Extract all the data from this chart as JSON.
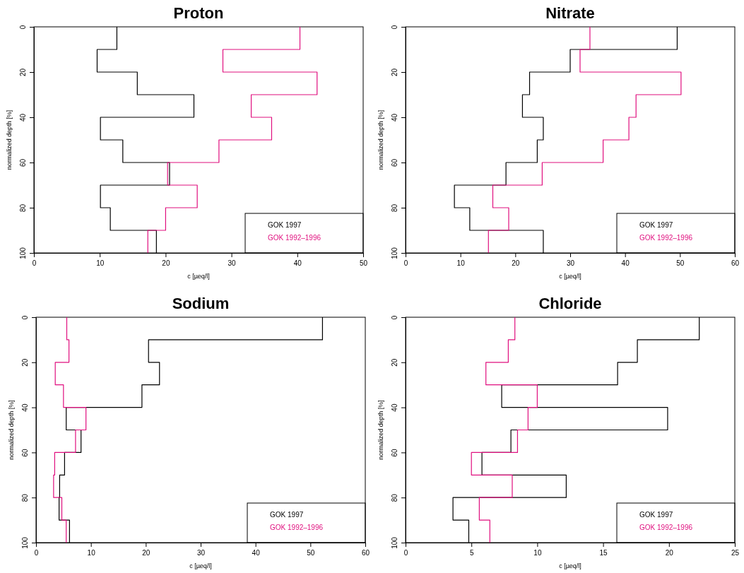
{
  "chart_data": [
    {
      "type": "step",
      "title": "Proton",
      "xlabel": "c [µeq/l]",
      "ylabel": "normalized depth [%]",
      "orientation": "horizontal",
      "x": [
        0,
        10,
        20,
        30,
        40,
        50,
        60,
        70,
        80,
        90,
        100
      ],
      "xlim": [
        0,
        50
      ],
      "xticks": [
        0,
        10,
        20,
        30,
        40,
        50
      ],
      "ylim": [
        100,
        0
      ],
      "yticks": [
        0,
        20,
        40,
        60,
        80,
        100
      ],
      "legend": "bottom right",
      "series": [
        {
          "name": "GOK 1997",
          "color": "#000000",
          "values": [
            12.6,
            9.6,
            15.7,
            24.3,
            10.1,
            13.5,
            20.6,
            10.1,
            11.6,
            18.6,
            18.6
          ]
        },
        {
          "name": "GOK 1992–1996",
          "color": "#e0107f",
          "values": [
            40.4,
            28.7,
            43.0,
            33.0,
            36.1,
            28.1,
            20.3,
            24.8,
            20.0,
            17.3,
            17.3
          ]
        }
      ]
    },
    {
      "type": "step",
      "title": "Nitrate",
      "xlabel": "c [µeq/l]",
      "ylabel": "normalized depth [%]",
      "orientation": "horizontal",
      "x": [
        0,
        10,
        20,
        30,
        40,
        50,
        60,
        70,
        80,
        90,
        100
      ],
      "xlim": [
        0,
        60
      ],
      "xticks": [
        0,
        10,
        20,
        30,
        40,
        50,
        60
      ],
      "ylim": [
        100,
        0
      ],
      "yticks": [
        0,
        20,
        40,
        60,
        80,
        100
      ],
      "legend": "bottom right",
      "series": [
        {
          "name": "GOK 1997",
          "color": "#000000",
          "values": [
            49.5,
            30.0,
            22.6,
            21.3,
            25.1,
            24.0,
            18.3,
            8.9,
            11.7,
            25.1,
            25.1
          ]
        },
        {
          "name": "GOK 1992–1996",
          "color": "#e0107f",
          "values": [
            33.6,
            31.8,
            50.2,
            42.0,
            40.7,
            36.0,
            24.9,
            15.9,
            18.8,
            15.1,
            15.1
          ]
        }
      ]
    },
    {
      "type": "step",
      "title": "Sodium",
      "xlabel": "c [µeq/l]",
      "ylabel": "normalized depth [%]",
      "orientation": "horizontal",
      "x": [
        0,
        10,
        20,
        30,
        40,
        50,
        60,
        70,
        80,
        90,
        100
      ],
      "xlim": [
        0,
        60
      ],
      "xticks": [
        0,
        10,
        20,
        30,
        40,
        50,
        60
      ],
      "ylim": [
        100,
        0
      ],
      "yticks": [
        0,
        20,
        40,
        60,
        80,
        100
      ],
      "legend": "bottom right",
      "series": [
        {
          "name": "GOK 1997",
          "color": "#000000",
          "values": [
            52.2,
            20.5,
            22.5,
            19.3,
            5.5,
            8.2,
            5.2,
            4.3,
            4.2,
            6.1,
            6.1
          ]
        },
        {
          "name": "GOK 1992–1996",
          "color": "#e0107f",
          "values": [
            5.6,
            6.0,
            3.5,
            5.0,
            9.1,
            7.2,
            3.4,
            3.2,
            4.7,
            5.5,
            5.5
          ]
        }
      ]
    },
    {
      "type": "step",
      "title": "Chloride",
      "xlabel": "c [µeq/l]",
      "ylabel": "normalized depth [%]",
      "orientation": "horizontal",
      "x": [
        0,
        10,
        20,
        30,
        40,
        50,
        60,
        70,
        80,
        90,
        100
      ],
      "xlim": [
        0,
        25
      ],
      "xticks": [
        0,
        5,
        10,
        15,
        20,
        25
      ],
      "ylim": [
        100,
        0
      ],
      "yticks": [
        0,
        20,
        40,
        60,
        80,
        100
      ],
      "legend": "bottom right",
      "series": [
        {
          "name": "GOK 1997",
          "color": "#000000",
          "values": [
            22.3,
            17.6,
            16.1,
            7.3,
            19.9,
            8.0,
            5.8,
            12.2,
            3.6,
            4.8,
            4.8
          ]
        },
        {
          "name": "GOK 1992–1996",
          "color": "#e0107f",
          "values": [
            8.3,
            7.8,
            6.1,
            10.0,
            9.3,
            8.5,
            5.0,
            8.1,
            5.6,
            6.4,
            6.4
          ]
        }
      ]
    }
  ]
}
